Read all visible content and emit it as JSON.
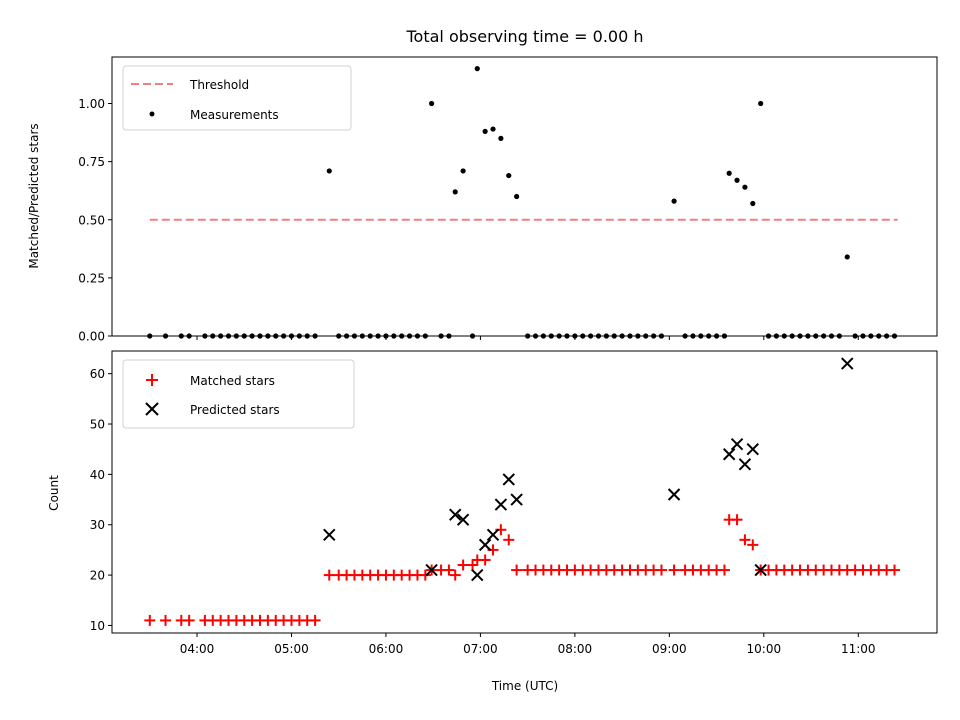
{
  "chart_data": {
    "type": "scatter",
    "title": "Total observing time = 0.00 h",
    "xlabel": "Time (UTC)",
    "x_ticks": [
      "04:00",
      "05:00",
      "06:00",
      "07:00",
      "08:00",
      "09:00",
      "10:00",
      "11:00"
    ],
    "xlim": [
      "03:06",
      "11:50"
    ],
    "colors": {
      "threshold": "#f08080",
      "measurements": "#000000",
      "matched": "#ff0000",
      "predicted": "#000000"
    },
    "top": {
      "ylabel": "Matched/Predicted stars",
      "ylim": [
        0,
        1.2
      ],
      "y_ticks": [
        "0.00",
        "0.25",
        "0.50",
        "0.75",
        "1.00"
      ],
      "legend_position": "upper-left",
      "threshold": {
        "name": "Threshold",
        "value": 0.5,
        "x_range": [
          "03:30",
          "11:25"
        ]
      },
      "measurements": {
        "name": "Measurements",
        "points": [
          [
            "03:30",
            0
          ],
          [
            "03:40",
            0
          ],
          [
            "03:50",
            0
          ],
          [
            "03:55",
            0
          ],
          [
            "04:05",
            0
          ],
          [
            "04:10",
            0
          ],
          [
            "04:15",
            0
          ],
          [
            "04:20",
            0
          ],
          [
            "04:25",
            0
          ],
          [
            "04:30",
            0
          ],
          [
            "04:35",
            0
          ],
          [
            "04:40",
            0
          ],
          [
            "04:45",
            0
          ],
          [
            "04:50",
            0
          ],
          [
            "04:55",
            0
          ],
          [
            "05:00",
            0
          ],
          [
            "05:05",
            0
          ],
          [
            "05:10",
            0
          ],
          [
            "05:15",
            0
          ],
          [
            "05:24",
            0.71
          ],
          [
            "05:30",
            0
          ],
          [
            "05:35",
            0
          ],
          [
            "05:40",
            0
          ],
          [
            "05:45",
            0
          ],
          [
            "05:50",
            0
          ],
          [
            "05:55",
            0
          ],
          [
            "06:00",
            0
          ],
          [
            "06:05",
            0
          ],
          [
            "06:10",
            0
          ],
          [
            "06:15",
            0
          ],
          [
            "06:20",
            0
          ],
          [
            "06:25",
            0
          ],
          [
            "06:29",
            1.0
          ],
          [
            "06:35",
            0
          ],
          [
            "06:40",
            0
          ],
          [
            "06:44",
            0.62
          ],
          [
            "06:49",
            0.71
          ],
          [
            "06:55",
            0
          ],
          [
            "06:58",
            1.15
          ],
          [
            "07:03",
            0.88
          ],
          [
            "07:08",
            0.89
          ],
          [
            "07:13",
            0.85
          ],
          [
            "07:18",
            0.69
          ],
          [
            "07:23",
            0.6
          ],
          [
            "07:30",
            0
          ],
          [
            "07:35",
            0
          ],
          [
            "07:40",
            0
          ],
          [
            "07:45",
            0
          ],
          [
            "07:50",
            0
          ],
          [
            "07:55",
            0
          ],
          [
            "08:00",
            0
          ],
          [
            "08:05",
            0
          ],
          [
            "08:10",
            0
          ],
          [
            "08:15",
            0
          ],
          [
            "08:20",
            0
          ],
          [
            "08:25",
            0
          ],
          [
            "08:30",
            0
          ],
          [
            "08:35",
            0
          ],
          [
            "08:40",
            0
          ],
          [
            "08:45",
            0
          ],
          [
            "08:50",
            0
          ],
          [
            "08:55",
            0
          ],
          [
            "09:03",
            0.58
          ],
          [
            "09:10",
            0
          ],
          [
            "09:15",
            0
          ],
          [
            "09:20",
            0
          ],
          [
            "09:25",
            0
          ],
          [
            "09:30",
            0
          ],
          [
            "09:35",
            0
          ],
          [
            "09:38",
            0.7
          ],
          [
            "09:43",
            0.67
          ],
          [
            "09:48",
            0.64
          ],
          [
            "09:53",
            0.57
          ],
          [
            "09:58",
            1.0
          ],
          [
            "10:03",
            0
          ],
          [
            "10:08",
            0
          ],
          [
            "10:13",
            0
          ],
          [
            "10:18",
            0
          ],
          [
            "10:23",
            0
          ],
          [
            "10:28",
            0
          ],
          [
            "10:33",
            0
          ],
          [
            "10:38",
            0
          ],
          [
            "10:43",
            0
          ],
          [
            "10:48",
            0
          ],
          [
            "10:53",
            0.34
          ],
          [
            "10:58",
            0
          ],
          [
            "11:03",
            0
          ],
          [
            "11:08",
            0
          ],
          [
            "11:13",
            0
          ],
          [
            "11:18",
            0
          ],
          [
            "11:23",
            0
          ]
        ]
      }
    },
    "bottom": {
      "ylabel": "Count",
      "ylim": [
        8.5,
        64.5
      ],
      "y_ticks": [
        "10",
        "20",
        "30",
        "40",
        "50",
        "60"
      ],
      "legend_position": "upper-left",
      "matched": {
        "name": "Matched stars",
        "points": [
          [
            "03:30",
            11
          ],
          [
            "03:40",
            11
          ],
          [
            "03:50",
            11
          ],
          [
            "03:55",
            11
          ],
          [
            "04:05",
            11
          ],
          [
            "04:10",
            11
          ],
          [
            "04:15",
            11
          ],
          [
            "04:20",
            11
          ],
          [
            "04:25",
            11
          ],
          [
            "04:30",
            11
          ],
          [
            "04:35",
            11
          ],
          [
            "04:40",
            11
          ],
          [
            "04:45",
            11
          ],
          [
            "04:50",
            11
          ],
          [
            "04:55",
            11
          ],
          [
            "05:00",
            11
          ],
          [
            "05:05",
            11
          ],
          [
            "05:10",
            11
          ],
          [
            "05:15",
            11
          ],
          [
            "05:24",
            20
          ],
          [
            "05:30",
            20
          ],
          [
            "05:35",
            20
          ],
          [
            "05:40",
            20
          ],
          [
            "05:45",
            20
          ],
          [
            "05:50",
            20
          ],
          [
            "05:55",
            20
          ],
          [
            "06:00",
            20
          ],
          [
            "06:05",
            20
          ],
          [
            "06:10",
            20
          ],
          [
            "06:15",
            20
          ],
          [
            "06:20",
            20
          ],
          [
            "06:25",
            20
          ],
          [
            "06:29",
            21
          ],
          [
            "06:35",
            21
          ],
          [
            "06:40",
            21
          ],
          [
            "06:44",
            20
          ],
          [
            "06:49",
            22
          ],
          [
            "06:55",
            22
          ],
          [
            "06:58",
            23
          ],
          [
            "07:03",
            23
          ],
          [
            "07:08",
            25
          ],
          [
            "07:13",
            29
          ],
          [
            "07:18",
            27
          ],
          [
            "07:23",
            21
          ],
          [
            "07:30",
            21
          ],
          [
            "07:35",
            21
          ],
          [
            "07:40",
            21
          ],
          [
            "07:45",
            21
          ],
          [
            "07:50",
            21
          ],
          [
            "07:55",
            21
          ],
          [
            "08:00",
            21
          ],
          [
            "08:05",
            21
          ],
          [
            "08:10",
            21
          ],
          [
            "08:15",
            21
          ],
          [
            "08:20",
            21
          ],
          [
            "08:25",
            21
          ],
          [
            "08:30",
            21
          ],
          [
            "08:35",
            21
          ],
          [
            "08:40",
            21
          ],
          [
            "08:45",
            21
          ],
          [
            "08:50",
            21
          ],
          [
            "08:55",
            21
          ],
          [
            "09:03",
            21
          ],
          [
            "09:10",
            21
          ],
          [
            "09:15",
            21
          ],
          [
            "09:20",
            21
          ],
          [
            "09:25",
            21
          ],
          [
            "09:30",
            21
          ],
          [
            "09:35",
            21
          ],
          [
            "09:38",
            31
          ],
          [
            "09:43",
            31
          ],
          [
            "09:48",
            27
          ],
          [
            "09:53",
            26
          ],
          [
            "09:58",
            21
          ],
          [
            "10:03",
            21
          ],
          [
            "10:08",
            21
          ],
          [
            "10:13",
            21
          ],
          [
            "10:18",
            21
          ],
          [
            "10:23",
            21
          ],
          [
            "10:28",
            21
          ],
          [
            "10:33",
            21
          ],
          [
            "10:38",
            21
          ],
          [
            "10:43",
            21
          ],
          [
            "10:48",
            21
          ],
          [
            "10:53",
            21
          ],
          [
            "10:58",
            21
          ],
          [
            "11:03",
            21
          ],
          [
            "11:08",
            21
          ],
          [
            "11:13",
            21
          ],
          [
            "11:18",
            21
          ],
          [
            "11:23",
            21
          ]
        ]
      },
      "predicted": {
        "name": "Predicted stars",
        "points": [
          [
            "05:24",
            28
          ],
          [
            "06:29",
            21
          ],
          [
            "06:44",
            32
          ],
          [
            "06:49",
            31
          ],
          [
            "06:58",
            20
          ],
          [
            "07:03",
            26
          ],
          [
            "07:08",
            28
          ],
          [
            "07:13",
            34
          ],
          [
            "07:18",
            39
          ],
          [
            "07:23",
            35
          ],
          [
            "09:03",
            36
          ],
          [
            "09:38",
            44
          ],
          [
            "09:43",
            46
          ],
          [
            "09:48",
            42
          ],
          [
            "09:53",
            45
          ],
          [
            "09:58",
            21
          ],
          [
            "10:53",
            62
          ]
        ]
      }
    }
  }
}
